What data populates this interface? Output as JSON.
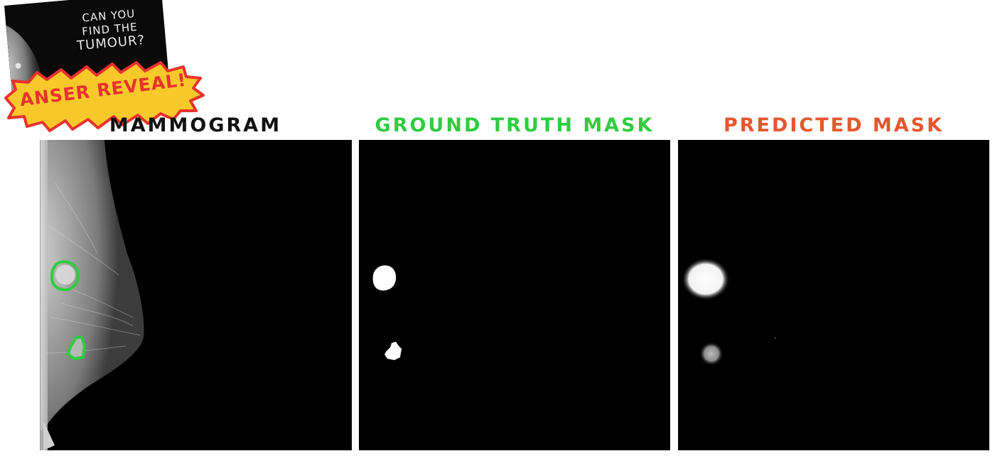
{
  "sticker": {
    "line1": "CAN YOU",
    "line2": "FIND THE",
    "line3": "TUMOUR?",
    "badge": "ANSER REVEAL!"
  },
  "panels": {
    "mammogram": {
      "title": "MAMMOGRAM"
    },
    "ground_truth": {
      "title": "GROUND TRUTH MASK"
    },
    "predicted": {
      "title": "PREDICTED MASK"
    }
  },
  "colors": {
    "mammogram_title": "#111111",
    "ground_truth_title": "#2ecc40",
    "predicted_title": "#e4572e",
    "tumour_outline": "#2ecc40",
    "badge_fill": "#f9c92b",
    "badge_text": "#e8322e",
    "background": "#ffffff",
    "panel_background": "#000000"
  }
}
